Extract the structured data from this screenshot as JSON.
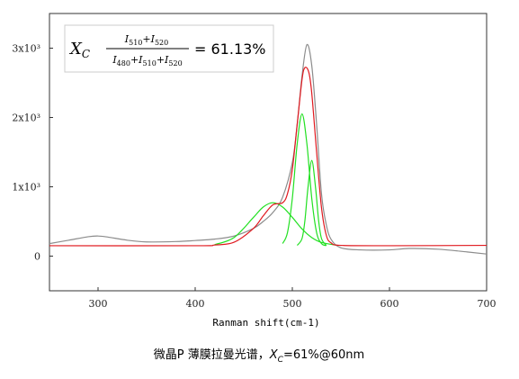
{
  "chart_data": {
    "type": "line",
    "xlabel": "Ranman shift(cm-1)",
    "xlim": [
      250,
      700
    ],
    "xticks": [
      300,
      400,
      500,
      600,
      700
    ],
    "ylim": [
      -500,
      3500
    ],
    "yticks": [
      0,
      {
        "value": 1000,
        "label": "1x10³"
      },
      {
        "value": 2000,
        "label": "2x10³"
      },
      {
        "value": 3000,
        "label": "3x10³"
      }
    ],
    "formula": {
      "var": "X",
      "var_sub": "C",
      "operator": "+",
      "numerator": [
        [
          "I",
          "510"
        ],
        [
          "I",
          "520"
        ]
      ],
      "denominator": [
        [
          "I",
          "480"
        ],
        [
          "I",
          "510"
        ],
        [
          "I",
          "520"
        ]
      ],
      "result": "= 61.13%"
    },
    "caption": {
      "text": "微晶P 薄膜拉曼光谱，",
      "var": "X",
      "var_sub": "C",
      "rest": "=61%@60nm"
    },
    "series": [
      {
        "color": "#8c8c8c",
        "x": [
          250,
          270,
          290,
          300,
          310,
          330,
          350,
          380,
          400,
          420,
          440,
          460,
          470,
          480,
          490,
          500,
          505,
          510,
          515,
          520,
          525,
          530,
          535,
          540,
          550,
          570,
          600,
          620,
          650,
          680,
          700
        ],
        "values": [
          180,
          230,
          280,
          290,
          275,
          230,
          205,
          210,
          225,
          245,
          290,
          400,
          500,
          630,
          850,
          1350,
          1900,
          2600,
          3050,
          2750,
          1900,
          900,
          450,
          240,
          120,
          90,
          90,
          110,
          100,
          60,
          30
        ]
      },
      {
        "color": "#22e022",
        "x": [
          420,
          440,
          460,
          470,
          480,
          490,
          500,
          510,
          520,
          530,
          545
        ],
        "values": [
          165,
          268,
          559,
          708,
          770,
          708,
          559,
          392,
          268,
          197,
          158
        ]
      },
      {
        "color": "#22e022",
        "x": [
          490,
          495,
          500,
          505,
          510,
          515,
          520,
          525,
          530,
          535
        ],
        "values": [
          182,
          340,
          834,
          1620,
          2050,
          1620,
          834,
          340,
          182,
          152
        ]
      },
      {
        "color": "#22e022",
        "x": [
          505,
          510,
          513,
          516,
          520,
          524,
          527,
          530,
          535
        ],
        "values": [
          155,
          255,
          519,
          974,
          1380,
          974,
          519,
          255,
          155
        ]
      },
      {
        "color": "#e0191f",
        "x": [
          250,
          400,
          420,
          440,
          460,
          470,
          480,
          490,
          495,
          500,
          505,
          510,
          513,
          517,
          520,
          525,
          530,
          535,
          540,
          550,
          600,
          700
        ],
        "values": [
          150,
          150,
          160,
          200,
          400,
          580,
          740,
          770,
          900,
          1250,
          1900,
          2550,
          2720,
          2650,
          2350,
          1500,
          700,
          300,
          190,
          155,
          150,
          155
        ]
      }
    ]
  }
}
